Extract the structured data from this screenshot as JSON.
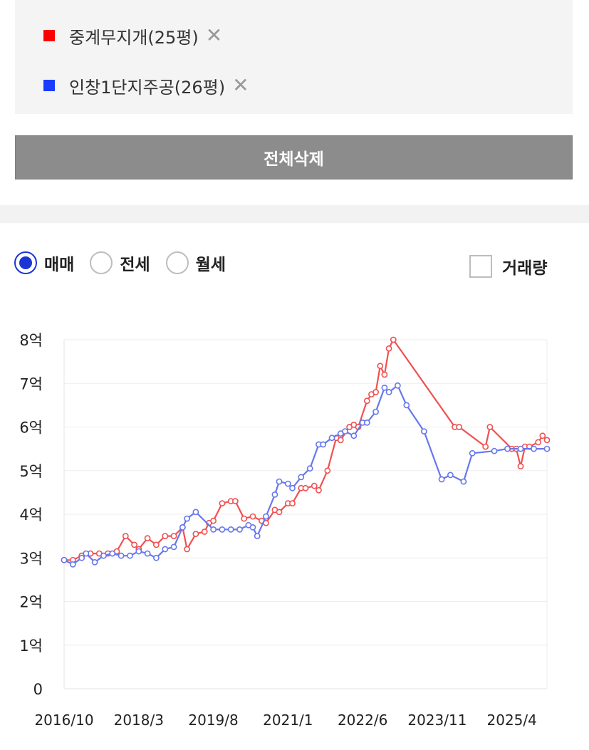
{
  "compare": {
    "items": [
      {
        "name": "중계무지개(25평)",
        "color": "#ff0000",
        "remove": "✕"
      },
      {
        "name": "인창1단지주공(26평)",
        "color": "#1a3cff",
        "remove": "✕"
      }
    ],
    "delete_all_label": "전체삭제"
  },
  "controls": {
    "radios": [
      {
        "label": "매매",
        "checked": true
      },
      {
        "label": "전세",
        "checked": false
      },
      {
        "label": "월세",
        "checked": false
      }
    ],
    "volume_label": "거래량",
    "volume_checked": false
  },
  "chart_data": {
    "type": "line",
    "x_tick_labels": [
      "2016/10",
      "2018/3",
      "2019/8",
      "2021/1",
      "2022/6",
      "2023/11",
      "2025/4"
    ],
    "y_tick_labels": [
      "0",
      "1억",
      "2억",
      "3억",
      "4억",
      "5억",
      "6억",
      "7억",
      "8억"
    ],
    "ylim": [
      0,
      8
    ],
    "y_unit": "억",
    "x_range": [
      "2016-10",
      "2025-12"
    ],
    "grid": true,
    "series": [
      {
        "name": "중계무지개(25평)",
        "color": "#f05050",
        "points": [
          [
            "2016-10",
            2.95
          ],
          [
            "2016-12",
            2.95
          ],
          [
            "2017-02",
            3.05
          ],
          [
            "2017-04",
            3.1
          ],
          [
            "2017-06",
            3.1
          ],
          [
            "2017-08",
            3.1
          ],
          [
            "2017-10",
            3.15
          ],
          [
            "2017-12",
            3.5
          ],
          [
            "2018-02",
            3.3
          ],
          [
            "2018-03",
            3.2
          ],
          [
            "2018-05",
            3.45
          ],
          [
            "2018-07",
            3.3
          ],
          [
            "2018-09",
            3.5
          ],
          [
            "2018-11",
            3.5
          ],
          [
            "2019-01",
            3.7
          ],
          [
            "2019-02",
            3.2
          ],
          [
            "2019-04",
            3.55
          ],
          [
            "2019-06",
            3.6
          ],
          [
            "2019-07",
            3.8
          ],
          [
            "2019-08",
            3.85
          ],
          [
            "2019-10",
            4.25
          ],
          [
            "2019-12",
            4.3
          ],
          [
            "2020-01",
            4.3
          ],
          [
            "2020-03",
            3.9
          ],
          [
            "2020-05",
            3.95
          ],
          [
            "2020-07",
            3.85
          ],
          [
            "2020-08",
            3.8
          ],
          [
            "2020-10",
            4.1
          ],
          [
            "2020-11",
            4.05
          ],
          [
            "2021-01",
            4.25
          ],
          [
            "2021-02",
            4.25
          ],
          [
            "2021-04",
            4.6
          ],
          [
            "2021-05",
            4.6
          ],
          [
            "2021-07",
            4.65
          ],
          [
            "2021-08",
            4.55
          ],
          [
            "2021-10",
            5.0
          ],
          [
            "2021-12",
            5.75
          ],
          [
            "2022-01",
            5.7
          ],
          [
            "2022-03",
            6.0
          ],
          [
            "2022-04",
            6.05
          ],
          [
            "2022-05",
            6.0
          ],
          [
            "2022-07",
            6.6
          ],
          [
            "2022-08",
            6.75
          ],
          [
            "2022-09",
            6.8
          ],
          [
            "2022-10",
            7.4
          ],
          [
            "2022-11",
            7.2
          ],
          [
            "2022-12",
            7.8
          ],
          [
            "2023-01",
            8.0
          ],
          [
            "2024-03",
            6.0
          ],
          [
            "2024-04",
            6.0
          ],
          [
            "2024-10",
            5.55
          ],
          [
            "2024-11",
            6.0
          ],
          [
            "2025-04",
            5.5
          ],
          [
            "2025-05",
            5.5
          ],
          [
            "2025-06",
            5.1
          ],
          [
            "2025-07",
            5.55
          ],
          [
            "2025-08",
            5.55
          ],
          [
            "2025-10",
            5.65
          ],
          [
            "2025-11",
            5.8
          ],
          [
            "2025-12",
            5.7
          ]
        ]
      },
      {
        "name": "인창1단지주공(26평)",
        "color": "#6677ee",
        "points": [
          [
            "2016-10",
            2.95
          ],
          [
            "2016-12",
            2.85
          ],
          [
            "2017-02",
            3.0
          ],
          [
            "2017-03",
            3.1
          ],
          [
            "2017-05",
            2.9
          ],
          [
            "2017-07",
            3.05
          ],
          [
            "2017-09",
            3.1
          ],
          [
            "2017-11",
            3.05
          ],
          [
            "2018-01",
            3.05
          ],
          [
            "2018-03",
            3.15
          ],
          [
            "2018-05",
            3.1
          ],
          [
            "2018-07",
            3.0
          ],
          [
            "2018-09",
            3.2
          ],
          [
            "2018-11",
            3.25
          ],
          [
            "2019-01",
            3.7
          ],
          [
            "2019-02",
            3.9
          ],
          [
            "2019-04",
            4.05
          ],
          [
            "2019-08",
            3.65
          ],
          [
            "2019-10",
            3.65
          ],
          [
            "2019-12",
            3.65
          ],
          [
            "2020-02",
            3.65
          ],
          [
            "2020-04",
            3.75
          ],
          [
            "2020-05",
            3.7
          ],
          [
            "2020-06",
            3.5
          ],
          [
            "2020-08",
            3.95
          ],
          [
            "2020-10",
            4.45
          ],
          [
            "2020-11",
            4.75
          ],
          [
            "2021-01",
            4.7
          ],
          [
            "2021-02",
            4.6
          ],
          [
            "2021-04",
            4.85
          ],
          [
            "2021-06",
            5.05
          ],
          [
            "2021-08",
            5.6
          ],
          [
            "2021-09",
            5.6
          ],
          [
            "2021-11",
            5.75
          ],
          [
            "2022-01",
            5.85
          ],
          [
            "2022-02",
            5.9
          ],
          [
            "2022-04",
            5.8
          ],
          [
            "2022-06",
            6.1
          ],
          [
            "2022-07",
            6.1
          ],
          [
            "2022-09",
            6.35
          ],
          [
            "2022-11",
            6.9
          ],
          [
            "2022-12",
            6.8
          ],
          [
            "2023-02",
            6.95
          ],
          [
            "2023-04",
            6.5
          ],
          [
            "2023-08",
            5.9
          ],
          [
            "2023-12",
            4.8
          ],
          [
            "2024-02",
            4.9
          ],
          [
            "2024-05",
            4.75
          ],
          [
            "2024-07",
            5.4
          ],
          [
            "2024-12",
            5.45
          ],
          [
            "2025-03",
            5.5
          ],
          [
            "2025-06",
            5.5
          ],
          [
            "2025-09",
            5.5
          ],
          [
            "2025-12",
            5.5
          ]
        ]
      }
    ]
  }
}
